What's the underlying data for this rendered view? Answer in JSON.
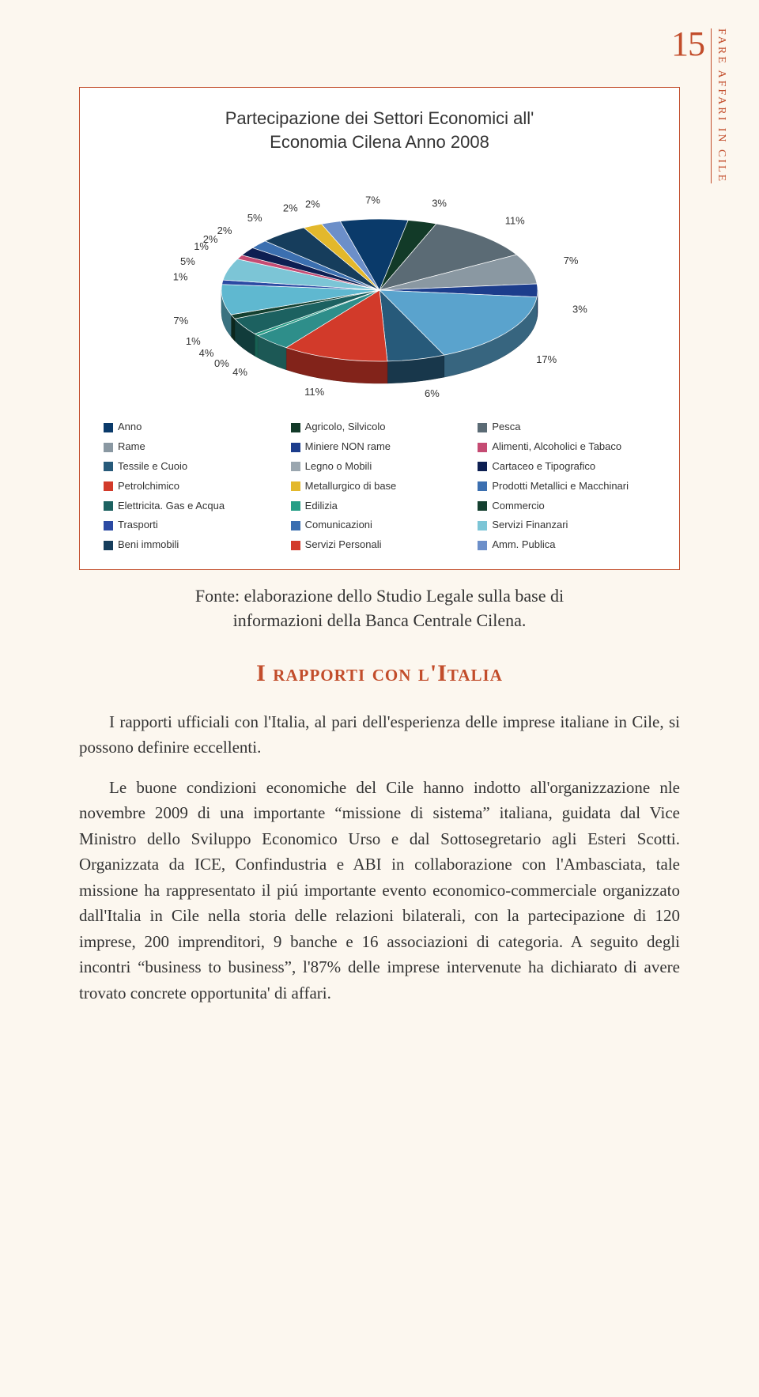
{
  "header": {
    "page_number": "15",
    "running_title": "FARE AFFARI IN CILE"
  },
  "chart": {
    "type": "pie",
    "title_line1": "Partecipazione dei Settori Economici all'",
    "title_line2": "Economia Cilena Anno 2008",
    "title_fontsize": 22,
    "label_fontsize": 13,
    "border_color": "#c24d2b",
    "background_color": "#ffffff",
    "slices": [
      {
        "name": "Anno",
        "value": 7,
        "color": "#0a3a6a",
        "label": "7%"
      },
      {
        "name": "Agricolo, Silvicolo",
        "value": 3,
        "color": "#123a28",
        "label": "3%"
      },
      {
        "name": "Pesca",
        "value": 11,
        "color": "#5b6b75",
        "label": "11%"
      },
      {
        "name": "Rame",
        "value": 7,
        "color": "#8a98a2",
        "label": "7%"
      },
      {
        "name": "Miniere NON rame",
        "value": 3,
        "color": "#1c3d8c",
        "label": "3%"
      },
      {
        "name": "Legno o Mobili",
        "value": 17,
        "color": "#5aa3cd",
        "label": "17%"
      },
      {
        "name": "Tessile e Cuoio",
        "value": 6,
        "color": "#275a7a",
        "label": "6%"
      },
      {
        "name": "Petrolchimico",
        "value": 11,
        "color": "#d23a2a",
        "label": "11%"
      },
      {
        "name": "Metallurgico di base",
        "value": 4,
        "color": "#2e8e8a",
        "label": "4%"
      },
      {
        "name": "Edilizia",
        "value": 0.5,
        "color": "#269e86",
        "label": "0%"
      },
      {
        "name": "Elettricita. Gas e Acqua",
        "value": 4,
        "color": "#1c6160",
        "label": "4%"
      },
      {
        "name": "Commercio",
        "value": 1,
        "color": "#144030",
        "label": "1%"
      },
      {
        "name": "Trasporti",
        "value": 7,
        "color": "#5fb8d0",
        "label": "7%"
      },
      {
        "name": "Comunicazioni",
        "value": 1,
        "color": "#2b4aa3",
        "label": "1%"
      },
      {
        "name": "Servizi Finanzari",
        "value": 5,
        "color": "#7cc5d6",
        "label": "5%"
      },
      {
        "name": "Alimenti, Alcoholici e Tabaco",
        "value": 1,
        "color": "#c54b73",
        "label": "1%"
      },
      {
        "name": "Cartaceo e Tipografico",
        "value": 2,
        "color": "#0d1f52",
        "label": "2%"
      },
      {
        "name": "Prodotti Metallici e Macchinari",
        "value": 2,
        "color": "#3b6fb0",
        "label": "2%"
      },
      {
        "name": "Beni immobili",
        "value": 5,
        "color": "#163d5c",
        "label": "5%"
      },
      {
        "name": "Servizi Personali",
        "value": 2,
        "color": "#e3b82c",
        "label": "2%"
      },
      {
        "name": "Amm. Publica",
        "value": 2,
        "color": "#6c8fc9",
        "label": "2%"
      }
    ],
    "legend": [
      {
        "label": "Anno",
        "color": "#0a3a6a"
      },
      {
        "label": "Rame",
        "color": "#8a98a2"
      },
      {
        "label": "Tessile e Cuoio",
        "color": "#275a7a"
      },
      {
        "label": "Petrolchimico",
        "color": "#d23a2a"
      },
      {
        "label": "Elettricita. Gas e Acqua",
        "color": "#1c6160"
      },
      {
        "label": "Trasporti",
        "color": "#2b4aa3"
      },
      {
        "label": "Beni immobili",
        "color": "#163d5c"
      },
      {
        "label": "Agricolo, Silvicolo",
        "color": "#123a28"
      },
      {
        "label": "Miniere NON rame",
        "color": "#1c3d8c"
      },
      {
        "label": "Legno o Mobili",
        "color": "#9aa6af"
      },
      {
        "label": "Metallurgico di base",
        "color": "#e3b82c"
      },
      {
        "label": "Edilizia",
        "color": "#269e86"
      },
      {
        "label": "Comunicazioni",
        "color": "#3b6fb0"
      },
      {
        "label": "Servizi Personali",
        "color": "#d23a2a"
      },
      {
        "label": "Pesca",
        "color": "#5b6b75"
      },
      {
        "label": "Alimenti, Alcoholici e Tabaco",
        "color": "#c54b73"
      },
      {
        "label": "Cartaceo e Tipografico",
        "color": "#0d1f52"
      },
      {
        "label": "Prodotti Metallici e Macchinari",
        "color": "#3b6fb0"
      },
      {
        "label": "Commercio",
        "color": "#144030"
      },
      {
        "label": "Servizi Finanzari",
        "color": "#7cc5d6"
      },
      {
        "label": "Amm. Publica",
        "color": "#6c8fc9"
      }
    ]
  },
  "source": {
    "line1": "Fonte: elaborazione dello Studio Legale sulla base di",
    "line2": "informazioni della Banca Centrale Cilena."
  },
  "section": {
    "heading": "I rapporti con l'Italia",
    "heading_color": "#c24d2b",
    "heading_fontsize": 30,
    "para1": "I rapporti ufficiali con l'Italia, al pari dell'esperienza delle imprese italiane in Cile, si possono definire eccellenti.",
    "para2": "Le buone condizioni economiche del Cile hanno indotto all'organizzazione nle novembre 2009 di una importante “missione di sistema” italiana, guidata dal Vice Ministro dello Sviluppo Economico Urso e dal Sottosegretario agli Esteri Scotti. Organizzata da ICE, Confindustria e ABI in collaborazione con l'Ambasciata, tale missione ha rappresentato il piú importante evento economico-commerciale organizzato dall'Italia in Cile nella storia delle relazioni bilaterali, con la partecipazione di 120 imprese, 200 imprenditori, 9 banche e 16 associazioni di categoria. A seguito degli incontri “business to business”, l'87% delle imprese intervenute ha dichiarato di avere trovato concrete opportunita' di affari."
  }
}
